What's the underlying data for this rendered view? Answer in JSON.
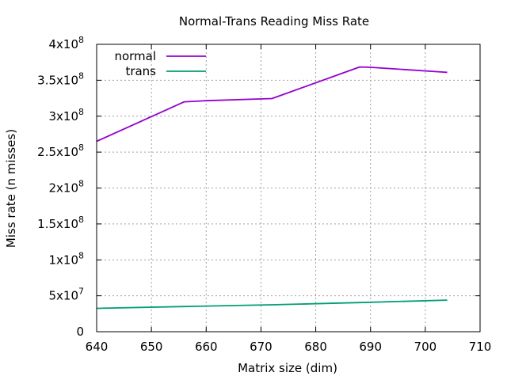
{
  "chart_data": {
    "type": "line",
    "title": "Normal-Trans Reading Miss Rate",
    "xlabel": "Matrix size (dim)",
    "ylabel": "Miss rate (n misses)",
    "xlim": [
      640,
      710
    ],
    "ylim": [
      0,
      400000000
    ],
    "grid": true,
    "legend_position": "top-left",
    "x_ticks": [
      640,
      650,
      660,
      670,
      680,
      690,
      700,
      710
    ],
    "y_ticks": [
      {
        "value": 0,
        "mantissa": "0",
        "exp": ""
      },
      {
        "value": 50000000,
        "mantissa": "5x10",
        "exp": "7"
      },
      {
        "value": 100000000,
        "mantissa": "1x10",
        "exp": "8"
      },
      {
        "value": 150000000,
        "mantissa": "1.5x10",
        "exp": "8"
      },
      {
        "value": 200000000,
        "mantissa": "2x10",
        "exp": "8"
      },
      {
        "value": 250000000,
        "mantissa": "2.5x10",
        "exp": "8"
      },
      {
        "value": 300000000,
        "mantissa": "3x10",
        "exp": "8"
      },
      {
        "value": 350000000,
        "mantissa": "3.5x10",
        "exp": "8"
      },
      {
        "value": 400000000,
        "mantissa": "4x10",
        "exp": "8"
      }
    ],
    "series": [
      {
        "name": "normal",
        "color": "#9400d3",
        "x": [
          640,
          656,
          660,
          672,
          688,
          690,
          704
        ],
        "y": [
          265000000,
          320000000,
          321500000,
          324500000,
          368500000,
          368000000,
          361000000
        ]
      },
      {
        "name": "trans",
        "color": "#009e73",
        "x": [
          640,
          656,
          672,
          688,
          704
        ],
        "y": [
          32500000,
          35000000,
          37500000,
          40500000,
          44000000
        ]
      }
    ]
  }
}
